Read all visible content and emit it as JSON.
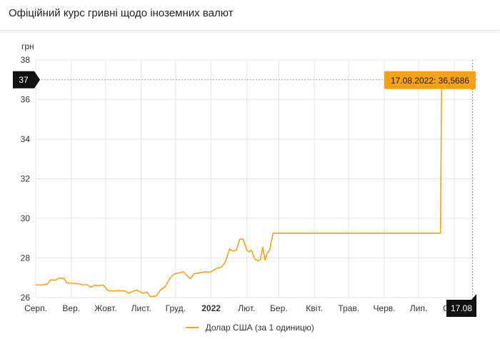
{
  "header": {
    "title": "Офіційний курс гривні щодо іноземних валют"
  },
  "legend": {
    "label": "Долар США (за 1 одиницю)"
  },
  "colors": {
    "series": "#f5a21b",
    "callout_bg": "#f5a21b",
    "dark_label_bg": "#111111",
    "grid": "#e6e6e6"
  },
  "chart_data": {
    "type": "line",
    "title": "",
    "ylabel": "грн",
    "xlabel": "",
    "ylim": [
      26,
      38
    ],
    "yticks": [
      26,
      28,
      30,
      32,
      34,
      36,
      38
    ],
    "xticks": [
      {
        "label": "Серп.",
        "date": "2021-08-01"
      },
      {
        "label": "Вер.",
        "date": "2021-09-01"
      },
      {
        "label": "Жовт.",
        "date": "2021-10-01"
      },
      {
        "label": "Лист.",
        "date": "2021-11-01"
      },
      {
        "label": "Груд.",
        "date": "2021-12-01"
      },
      {
        "label": "2022",
        "date": "2022-01-01",
        "bold": true
      },
      {
        "label": "Лют.",
        "date": "2022-02-01"
      },
      {
        "label": "Бер.",
        "date": "2022-03-01"
      },
      {
        "label": "Квіт.",
        "date": "2022-04-01"
      },
      {
        "label": "Трав.",
        "date": "2022-05-01"
      },
      {
        "label": "Черв.",
        "date": "2022-06-01"
      },
      {
        "label": "Лип.",
        "date": "2022-07-01"
      },
      {
        "label": "Серп.",
        "date": "2022-08-01"
      }
    ],
    "xlim": [
      "2021-08-01",
      "2022-08-21"
    ],
    "grid": true,
    "legend_position": "bottom",
    "series": [
      {
        "name": "Долар США (за 1 одиницю)",
        "points": [
          [
            "2021-08-01",
            26.65
          ],
          [
            "2021-08-06",
            26.63
          ],
          [
            "2021-08-11",
            26.68
          ],
          [
            "2021-08-14",
            26.9
          ],
          [
            "2021-08-18",
            26.88
          ],
          [
            "2021-08-22",
            27.0
          ],
          [
            "2021-08-26",
            26.95
          ],
          [
            "2021-08-28",
            26.75
          ],
          [
            "2021-09-02",
            26.72
          ],
          [
            "2021-09-07",
            26.7
          ],
          [
            "2021-09-11",
            26.65
          ],
          [
            "2021-09-15",
            26.65
          ],
          [
            "2021-09-18",
            26.52
          ],
          [
            "2021-09-21",
            26.62
          ],
          [
            "2021-09-25",
            26.6
          ],
          [
            "2021-09-29",
            26.63
          ],
          [
            "2021-10-03",
            26.35
          ],
          [
            "2021-10-07",
            26.33
          ],
          [
            "2021-10-12",
            26.35
          ],
          [
            "2021-10-18",
            26.33
          ],
          [
            "2021-10-21",
            26.22
          ],
          [
            "2021-10-24",
            26.3
          ],
          [
            "2021-10-28",
            26.38
          ],
          [
            "2021-10-31",
            26.3
          ],
          [
            "2021-11-03",
            26.22
          ],
          [
            "2021-11-06",
            26.28
          ],
          [
            "2021-11-09",
            26.05
          ],
          [
            "2021-11-14",
            26.08
          ],
          [
            "2021-11-18",
            26.4
          ],
          [
            "2021-11-22",
            26.55
          ],
          [
            "2021-11-26",
            26.98
          ],
          [
            "2021-11-30",
            27.2
          ],
          [
            "2021-12-04",
            27.25
          ],
          [
            "2021-12-08",
            27.3
          ],
          [
            "2021-12-11",
            27.1
          ],
          [
            "2021-12-14",
            26.95
          ],
          [
            "2021-12-17",
            27.2
          ],
          [
            "2021-12-22",
            27.25
          ],
          [
            "2021-12-27",
            27.3
          ],
          [
            "2021-12-31",
            27.28
          ],
          [
            "2022-01-05",
            27.45
          ],
          [
            "2022-01-10",
            27.55
          ],
          [
            "2022-01-13",
            27.75
          ],
          [
            "2022-01-17",
            28.45
          ],
          [
            "2022-01-20",
            28.35
          ],
          [
            "2022-01-23",
            28.4
          ],
          [
            "2022-01-26",
            28.95
          ],
          [
            "2022-01-29",
            28.95
          ],
          [
            "2022-02-01",
            28.4
          ],
          [
            "2022-02-03",
            28.3
          ],
          [
            "2022-02-05",
            28.4
          ],
          [
            "2022-02-08",
            27.95
          ],
          [
            "2022-02-11",
            27.85
          ],
          [
            "2022-02-13",
            27.92
          ],
          [
            "2022-02-15",
            28.55
          ],
          [
            "2022-02-17",
            27.9
          ],
          [
            "2022-02-19",
            28.25
          ],
          [
            "2022-02-21",
            28.4
          ],
          [
            "2022-02-24",
            29.25
          ],
          [
            "2022-07-20",
            29.25
          ],
          [
            "2022-07-21",
            36.5686
          ],
          [
            "2022-08-17",
            36.5686
          ]
        ]
      }
    ],
    "highlight": {
      "date": "2022-08-17",
      "value": 36.5686,
      "tooltip": "17.08.2022: 36,5686",
      "y_axis_label": "37",
      "x_axis_label": "17.08"
    }
  }
}
